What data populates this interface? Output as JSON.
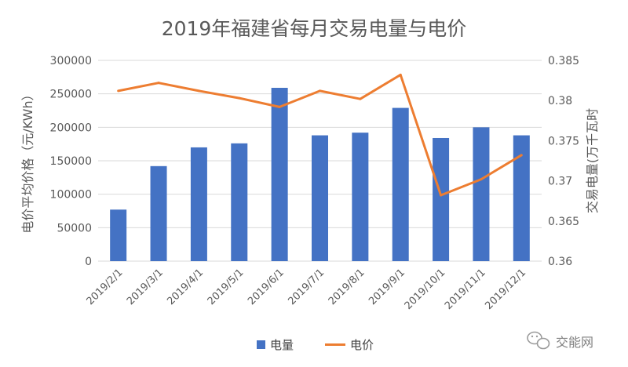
{
  "chart_data": {
    "type": "bar",
    "title": "2019年福建省每月交易电量与电价",
    "categories": [
      "2019/2/1",
      "2019/3/1",
      "2019/4/1",
      "2019/5/1",
      "2019/6/1",
      "2019/7/1",
      "2019/8/1",
      "2019/9/1",
      "2019/10/1",
      "2019/11/1",
      "2019/12/1"
    ],
    "series": [
      {
        "name": "电量",
        "type": "bar",
        "axis": "left",
        "color": "#4472C4",
        "values": [
          77000,
          142000,
          170000,
          176000,
          259000,
          188000,
          192000,
          229000,
          184000,
          200000,
          188000
        ]
      },
      {
        "name": "电价",
        "type": "line",
        "axis": "right",
        "color": "#ED7D31",
        "values": [
          0.3812,
          0.3822,
          0.3812,
          0.3803,
          0.3792,
          0.3812,
          0.3802,
          0.3832,
          0.3682,
          0.3702,
          0.3732
        ]
      }
    ],
    "ylabel": "电价平均价格（元/KWh）",
    "ylabel_right": "交易电量(万千瓦时",
    "ylim": [
      0,
      300000
    ],
    "yticks": [
      "0",
      "50000",
      "100000",
      "150000",
      "200000",
      "250000",
      "300000"
    ],
    "ylim_right": [
      0.36,
      0.385
    ],
    "yticks_right": [
      "0.36",
      "0.365",
      "0.37",
      "0.375",
      "0.38",
      "0.385"
    ],
    "grid": true,
    "legend_position": "bottom"
  },
  "watermark": {
    "text": "交能网",
    "icon": "wechat-icon"
  }
}
